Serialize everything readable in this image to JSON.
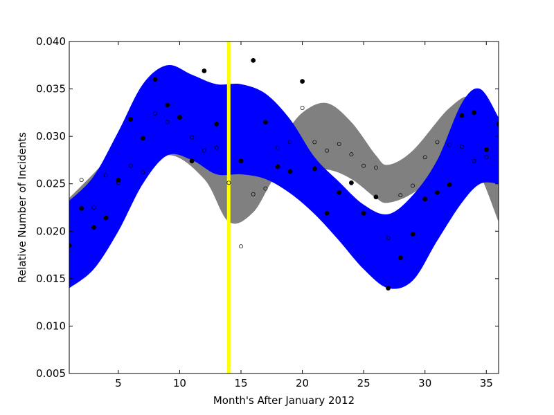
{
  "chart_data": {
    "type": "scatter",
    "xlabel": "Month's After January 2012",
    "ylabel": "Relative Number of Incidents",
    "xlim": [
      1,
      36
    ],
    "ylim": [
      0.005,
      0.04
    ],
    "xticks": [
      5,
      10,
      15,
      20,
      25,
      30,
      35
    ],
    "yticks": [
      0.005,
      0.01,
      0.015,
      0.02,
      0.025,
      0.03,
      0.035,
      0.04
    ],
    "ytick_labels": [
      "0.005",
      "0.010",
      "0.015",
      "0.020",
      "0.025",
      "0.030",
      "0.035",
      "0.040"
    ],
    "grid": false,
    "vertical_line": {
      "x": 14,
      "color": "#ffff00"
    },
    "colors": {
      "band_blue": "#0000ff",
      "band_gray": "#808080",
      "points": "#000000"
    },
    "bands": [
      {
        "id": "gray",
        "x": [
          1,
          4,
          6,
          9,
          12,
          14,
          16,
          18,
          20,
          22,
          24,
          26,
          27,
          29,
          32,
          34,
          36
        ],
        "upper": [
          0.0235,
          0.0275,
          0.031,
          0.0365,
          0.0355,
          0.033,
          0.0285,
          0.0295,
          0.0325,
          0.0335,
          0.0315,
          0.028,
          0.027,
          0.0285,
          0.033,
          0.034,
          0.0295
        ],
        "lower": [
          0.0175,
          0.022,
          0.0245,
          0.028,
          0.0255,
          0.021,
          0.022,
          0.026,
          0.026,
          0.0265,
          0.0255,
          0.0235,
          0.023,
          0.024,
          0.027,
          0.027,
          0.021
        ]
      },
      {
        "id": "blue",
        "x": [
          1,
          3,
          5,
          7,
          9,
          11,
          13,
          15,
          17,
          19,
          21,
          23,
          25,
          27,
          29,
          31,
          33,
          34.5,
          36
        ],
        "upper": [
          0.0232,
          0.0258,
          0.0305,
          0.0355,
          0.0375,
          0.0365,
          0.0355,
          0.0355,
          0.0345,
          0.0318,
          0.0278,
          0.0252,
          0.0228,
          0.0218,
          0.0238,
          0.0275,
          0.0335,
          0.035,
          0.032
        ],
        "lower": [
          0.014,
          0.016,
          0.02,
          0.025,
          0.028,
          0.0275,
          0.026,
          0.026,
          0.0255,
          0.024,
          0.0218,
          0.019,
          0.016,
          0.014,
          0.0148,
          0.019,
          0.023,
          0.025,
          0.025
        ]
      }
    ],
    "series": [
      {
        "marker": "filled",
        "points": [
          [
            1,
            0.0185
          ],
          [
            2,
            0.0224
          ],
          [
            3,
            0.0204
          ],
          [
            4,
            0.0214
          ],
          [
            5,
            0.0254
          ],
          [
            6,
            0.0318
          ],
          [
            7,
            0.0298
          ],
          [
            8,
            0.036
          ],
          [
            9,
            0.0333
          ],
          [
            10,
            0.032
          ],
          [
            11,
            0.0274
          ],
          [
            12,
            0.0369
          ],
          [
            13,
            0.0313
          ],
          [
            15,
            0.0274
          ],
          [
            16,
            0.038
          ],
          [
            17,
            0.0315
          ],
          [
            18,
            0.0268
          ],
          [
            19,
            0.0263
          ],
          [
            20,
            0.0358
          ],
          [
            21,
            0.0266
          ],
          [
            22,
            0.0219
          ],
          [
            23,
            0.0241
          ],
          [
            24,
            0.0251
          ],
          [
            25,
            0.0219
          ],
          [
            26,
            0.0236
          ],
          [
            27,
            0.014
          ],
          [
            28,
            0.0172
          ],
          [
            29,
            0.0197
          ],
          [
            30,
            0.0234
          ],
          [
            31,
            0.0241
          ],
          [
            32,
            0.0249
          ],
          [
            33,
            0.0322
          ],
          [
            34,
            0.0325
          ],
          [
            35,
            0.0286
          ],
          [
            36,
            0.0313
          ]
        ]
      },
      {
        "marker": "open",
        "points": [
          [
            2,
            0.0254
          ],
          [
            3,
            0.0225
          ],
          [
            4,
            0.0259
          ],
          [
            5,
            0.0251
          ],
          [
            6,
            0.0269
          ],
          [
            7,
            0.0262
          ],
          [
            8,
            0.0324
          ],
          [
            9,
            0.0315
          ],
          [
            11,
            0.0299
          ],
          [
            12,
            0.0285
          ],
          [
            13,
            0.0288
          ],
          [
            14,
            0.0251
          ],
          [
            15,
            0.0184
          ],
          [
            16,
            0.0239
          ],
          [
            17,
            0.0245
          ],
          [
            18,
            0.0288
          ],
          [
            19,
            0.0294
          ],
          [
            20,
            0.033
          ],
          [
            21,
            0.0294
          ],
          [
            22,
            0.0285
          ],
          [
            23,
            0.0292
          ],
          [
            24,
            0.0281
          ],
          [
            25,
            0.0269
          ],
          [
            26,
            0.0267
          ],
          [
            27,
            0.0193
          ],
          [
            28,
            0.0238
          ],
          [
            29,
            0.0248
          ],
          [
            30,
            0.0278
          ],
          [
            31,
            0.0294
          ],
          [
            32,
            0.0291
          ],
          [
            33,
            0.0289
          ],
          [
            34,
            0.0274
          ],
          [
            35,
            0.0278
          ]
        ]
      }
    ]
  }
}
